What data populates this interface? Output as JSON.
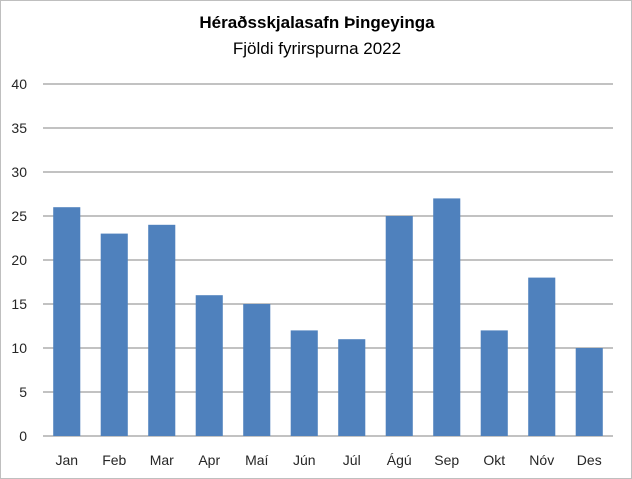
{
  "chart_data": {
    "type": "bar",
    "title": "Héraðsskjalasafn Þingeyinga",
    "subtitle": "Fjöldi fyrirspurna 2022",
    "xlabel": "",
    "ylabel": "",
    "categories": [
      "Jan",
      "Feb",
      "Mar",
      "Apr",
      "Maí",
      "Jún",
      "Júl",
      "Ágú",
      "Sep",
      "Okt",
      "Nóv",
      "Des"
    ],
    "values": [
      26,
      23,
      24,
      16,
      15,
      12,
      11,
      25,
      27,
      12,
      18,
      10
    ],
    "ylim": [
      0,
      40
    ],
    "yticks": [
      "0",
      "5",
      "10",
      "15",
      "20",
      "25",
      "30",
      "35",
      "40"
    ],
    "grid": true,
    "legend": "none",
    "bar_color": "#4f81bd",
    "grid_color": "#868686"
  }
}
